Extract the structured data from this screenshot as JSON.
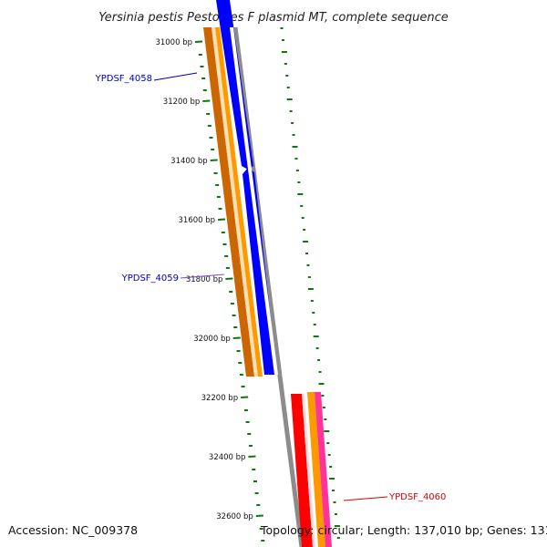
{
  "title": "Yersinia pestis Pestoides F plasmid MT, complete sequence",
  "footer": {
    "accession": "Accession: NC_009378",
    "summary": "Topology: circular; Length: 137,010 bp; Genes: 131"
  },
  "colors": {
    "backbone": "#8c8c8c",
    "tick": "#0a7a0a",
    "cds_blue": "#0000ff",
    "cds_orange": "#ff9900",
    "cds_dark_orange": "#cc6600",
    "cds_red": "#ff0000",
    "cds_pink": "#ff3399",
    "label_blue": "#0000bb",
    "label_red": "#dd0000"
  },
  "scale_ticks": [
    {
      "bp": 31000,
      "label": "31000 bp"
    },
    {
      "bp": 31200,
      "label": "31200 bp"
    },
    {
      "bp": 31400,
      "label": "31400 bp"
    },
    {
      "bp": 31600,
      "label": "31600 bp"
    },
    {
      "bp": 31800,
      "label": "31800 bp"
    },
    {
      "bp": 32000,
      "label": "32000 bp"
    },
    {
      "bp": 32200,
      "label": "32200 bp"
    },
    {
      "bp": 32400,
      "label": "32400 bp"
    },
    {
      "bp": 32600,
      "label": "32600 bp"
    }
  ],
  "gene_labels": [
    {
      "name": "YPDSF_4058",
      "color": "#0000bb"
    },
    {
      "name": "YPDSF_4059",
      "color": "#0000bb"
    },
    {
      "name": "YPDSF_4060",
      "color": "#dd0000"
    }
  ]
}
